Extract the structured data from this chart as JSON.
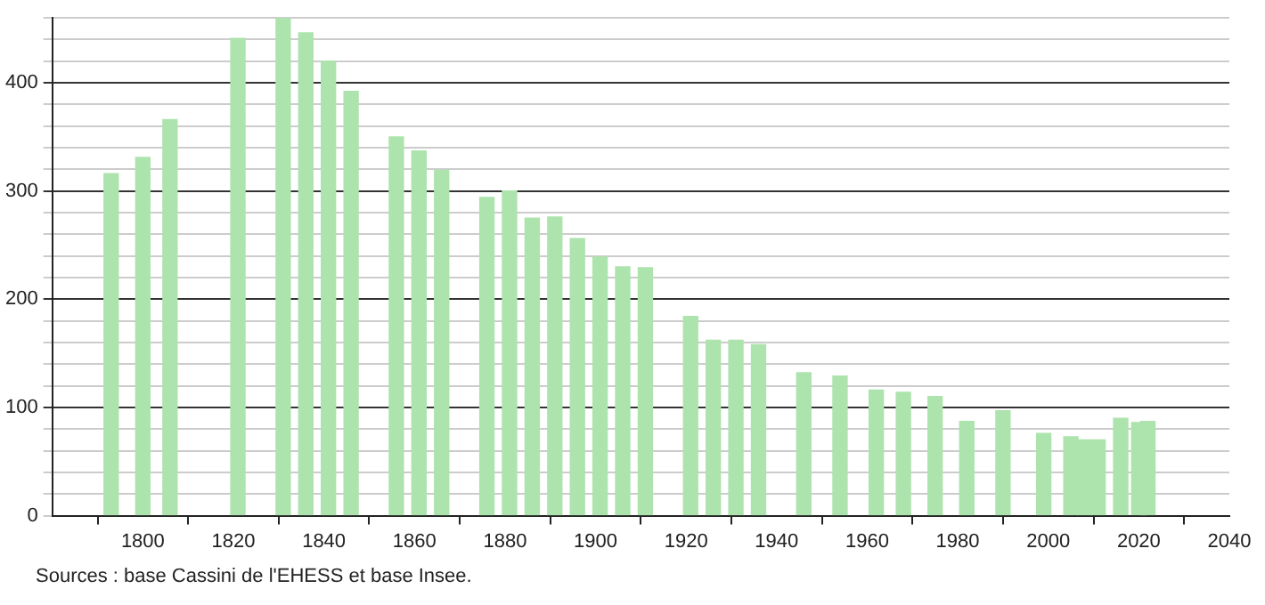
{
  "chart_data": {
    "type": "bar",
    "color": "#ade3ad",
    "x": [
      1793,
      1800,
      1806,
      1821,
      1831,
      1836,
      1841,
      1846,
      1856,
      1861,
      1866,
      1876,
      1881,
      1886,
      1891,
      1896,
      1901,
      1906,
      1911,
      1921,
      1926,
      1931,
      1936,
      1946,
      1954,
      1962,
      1968,
      1975,
      1982,
      1990,
      1999,
      2005,
      2008,
      2011,
      2016,
      2020,
      2022
    ],
    "values": [
      316,
      331,
      366,
      441,
      460,
      446,
      420,
      392,
      350,
      337,
      319,
      294,
      300,
      275,
      276,
      256,
      239,
      230,
      229,
      184,
      162,
      162,
      158,
      132,
      129,
      116,
      114,
      110,
      87,
      97,
      76,
      73,
      70,
      70,
      90,
      86,
      87
    ],
    "xlim": [
      1780,
      2040
    ],
    "xticks": [
      1800,
      1820,
      1840,
      1860,
      1880,
      1900,
      1920,
      1940,
      1960,
      1980,
      2000,
      2020,
      2040
    ],
    "ylim": [
      0,
      460
    ],
    "yticks": [
      0,
      {
        "value": 20,
        "label": null
      },
      {
        "value": 40,
        "label": null
      },
      {
        "value": 60,
        "label": null
      },
      {
        "value": 80,
        "label": null
      },
      100,
      {
        "value": 120,
        "label": null
      },
      {
        "value": 140,
        "label": null
      },
      {
        "value": 160,
        "label": null
      },
      {
        "value": 180,
        "label": null
      },
      200,
      {
        "value": 220,
        "label": null
      },
      {
        "value": 240,
        "label": null
      },
      {
        "value": 260,
        "label": null
      },
      {
        "value": 280,
        "label": null
      },
      300,
      {
        "value": 320,
        "label": null
      },
      {
        "value": 340,
        "label": null
      },
      {
        "value": 360,
        "label": null
      },
      {
        "value": 380,
        "label": null
      },
      400,
      {
        "value": 420,
        "label": null
      },
      {
        "value": 440,
        "label": null
      },
      {
        "value": 460,
        "label": null
      }
    ],
    "grid": "y",
    "legend": false,
    "annotations": [
      "Sources : base Cassini de l'EHESS et base Insee."
    ]
  }
}
